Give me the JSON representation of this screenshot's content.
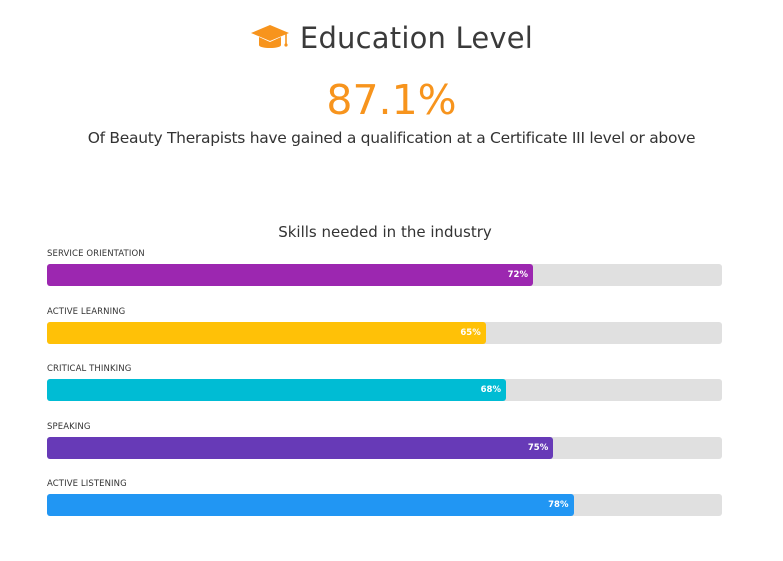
{
  "header": {
    "icon": "graduation-cap-icon",
    "title": "Education Level",
    "accent_color": "#f7941d"
  },
  "stat": {
    "value": "87.1%",
    "description": "Of Beauty Therapists have gained a qualification at a Certificate III level or above"
  },
  "chart_data": {
    "type": "bar",
    "orientation": "horizontal",
    "title": "Skills needed in the industry",
    "xlabel": "",
    "ylabel": "",
    "xlim": [
      0,
      100
    ],
    "categories": [
      "SERVICE ORIENTATION",
      "ACTIVE LEARNING",
      "CRITICAL THINKING",
      "SPEAKING",
      "ACTIVE LISTENING"
    ],
    "values": [
      72,
      65,
      68,
      75,
      78
    ],
    "value_labels": [
      "72%",
      "65%",
      "68%",
      "75%",
      "78%"
    ],
    "colors": [
      "#9c27b0",
      "#ffc107",
      "#00bcd4",
      "#673ab7",
      "#2196f3"
    ],
    "track_color": "#e0e0e0",
    "grid": false,
    "legend": "none"
  }
}
